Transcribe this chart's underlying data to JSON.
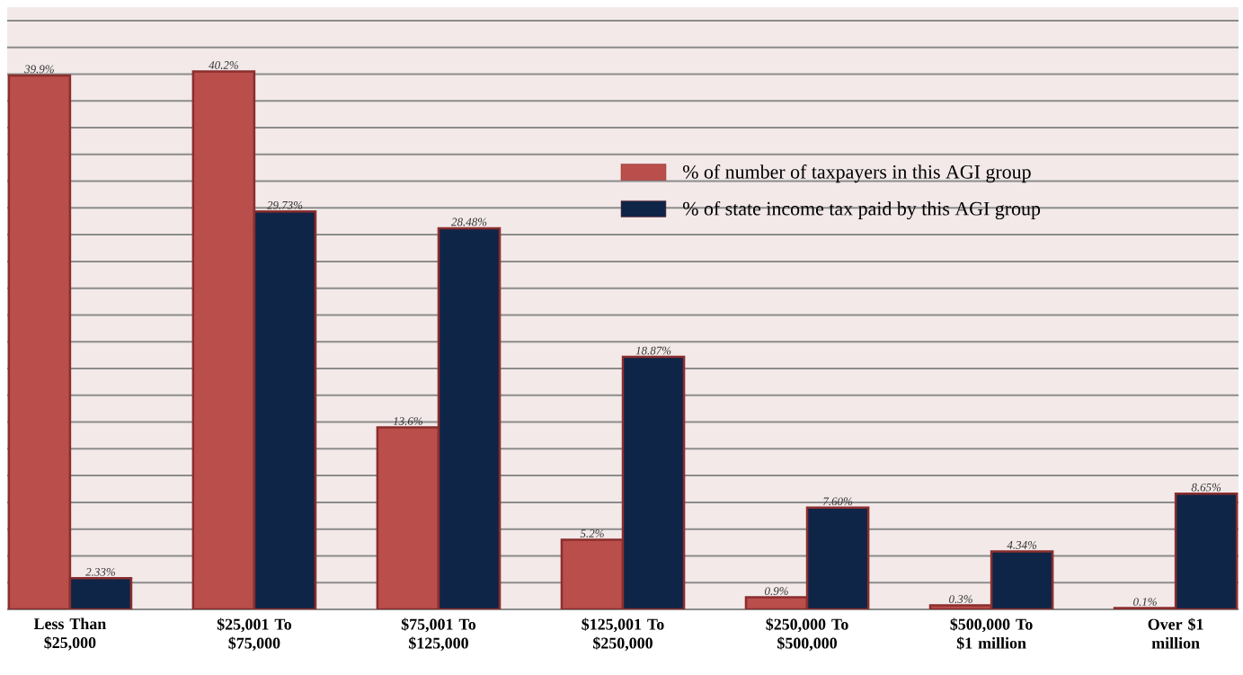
{
  "chart_data": {
    "type": "bar",
    "categories": [
      "Less Than $25,000",
      "$25,001 To $75,000",
      "$75,001 To $125,000",
      "$125,001 To $250,000",
      "$250,000 To $500,000",
      "$500,000 To $1 million",
      "Over $1 million"
    ],
    "series": [
      {
        "name": "% of number of taxpayers in this AGI group",
        "color": "#b94e4b",
        "values": [
          39.9,
          40.2,
          13.6,
          5.2,
          0.9,
          0.3,
          0.1
        ],
        "value_labels": [
          "39.9%",
          "40.2%",
          "13.6%",
          "5.2%",
          "0.9%",
          "0.3%",
          "0.1%"
        ]
      },
      {
        "name": "% of state income tax paid by this AGI group",
        "color": "#0f2547",
        "values": [
          2.33,
          29.73,
          28.48,
          18.87,
          7.6,
          4.34,
          8.65
        ],
        "value_labels": [
          "2.33%",
          "29.73%",
          "28.48%",
          "18.87%",
          "7.60%",
          "4.34%",
          "8.65%"
        ]
      }
    ],
    "ylim": [
      0,
      45
    ],
    "tick_labels": "x",
    "grid": "y",
    "legend": "top right"
  }
}
